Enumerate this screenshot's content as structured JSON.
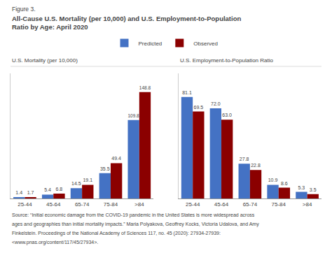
{
  "title": [
    "Figure 3.",
    "All-Cause U.S. Mortality (per 10,000) and U.S. Employment-to-Population",
    "Ratio by Age: April 2020"
  ],
  "annotations": [
    "Source: “Initial economic damage from the COVID-19 pandemic in the United States is more widespread across",
    "ages and geographies than initial mortality impacts.” Maria Polyakova, Geoffrey Kocks, Victoria Udalova, and Amy",
    "Finkelstein. Proceedings of the National Academy of Sciences 117, no. 45 (2020): 27934-27939:",
    "<www.pnas.org/content/117/45/27934>."
  ],
  "chart_data": [
    {
      "type": "bar",
      "title": "U.S. Mortality (per 10,000)",
      "categories": [
        "25-44",
        "45-64",
        "65-74",
        "75-84",
        ">84"
      ],
      "series": [
        {
          "name": "Predicted",
          "color": "#4472C4",
          "values": [
            1.4,
            5.4,
            14.5,
            35.5,
            109.8
          ],
          "value_labels": [
            "1.4",
            "5.4",
            "14.5",
            "35.5",
            "109.8"
          ]
        },
        {
          "name": "Observed",
          "color": "#8B0000",
          "values": [
            1.7,
            6.8,
            19.1,
            49.4,
            148.8
          ],
          "value_labels": [
            "1.7",
            "6.8",
            "19.1",
            "49.4",
            "148.8"
          ]
        }
      ],
      "ylim": [
        0,
        175
      ],
      "grid": false,
      "data_labels": true,
      "tick_labels": "x",
      "legend": "top"
    },
    {
      "type": "bar",
      "title": "U.S. Employment-to-Population Ratio",
      "categories": [
        "25-44",
        "45-64",
        "65-74",
        "75-84",
        ">84"
      ],
      "series": [
        {
          "name": "Predicted",
          "color": "#4472C4",
          "values": [
            81.1,
            72.0,
            27.8,
            10.9,
            5.3
          ],
          "value_labels": [
            "81.1",
            "72.0",
            "27.8",
            "10.9",
            "5.3"
          ]
        },
        {
          "name": "Observed",
          "color": "#8B0000",
          "values": [
            69.5,
            63.0,
            22.8,
            8.6,
            3.5
          ],
          "value_labels": [
            "69.5",
            "63.0",
            "22.8",
            "8.6",
            "3.5"
          ]
        }
      ],
      "ylim": [
        0,
        100
      ],
      "grid": false,
      "data_labels": true,
      "tick_labels": "x"
    }
  ]
}
